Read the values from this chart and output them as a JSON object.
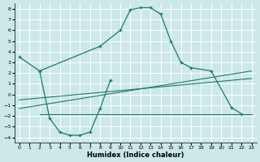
{
  "xlabel": "Humidex (Indice chaleur)",
  "bg_color": "#cce8e8",
  "line_color": "#1a7a6e",
  "grid_color": "#ffffff",
  "xlim": [
    -0.5,
    23.5
  ],
  "ylim": [
    -4.5,
    8.5
  ],
  "xticks": [
    0,
    1,
    2,
    3,
    4,
    5,
    6,
    7,
    8,
    9,
    10,
    11,
    12,
    13,
    14,
    15,
    16,
    17,
    18,
    19,
    20,
    21,
    22,
    23
  ],
  "yticks": [
    -4,
    -3,
    -2,
    -1,
    0,
    1,
    2,
    3,
    4,
    5,
    6,
    7,
    8
  ],
  "main_curve_x": [
    0,
    2,
    8,
    10,
    11,
    12,
    13,
    14,
    15,
    16,
    17,
    19,
    21,
    22
  ],
  "main_curve_y": [
    3.5,
    2.2,
    4.5,
    6.0,
    7.9,
    8.1,
    8.1,
    7.5,
    5.0,
    3.0,
    2.5,
    2.2,
    -1.2,
    -1.8
  ],
  "low_curve_x": [
    2,
    3,
    4,
    5,
    6,
    7,
    8,
    9
  ],
  "low_curve_y": [
    2.2,
    -2.2,
    -3.5,
    -3.8,
    -3.8,
    -3.5,
    -1.3,
    1.3
  ],
  "diag_line1_x": [
    0,
    23
  ],
  "diag_line1_y": [
    -1.3,
    2.2
  ],
  "diag_line2_x": [
    0,
    23
  ],
  "diag_line2_y": [
    -0.5,
    1.5
  ],
  "flat_line_x": [
    2,
    23
  ],
  "flat_line_y": [
    -1.8,
    -1.8
  ]
}
